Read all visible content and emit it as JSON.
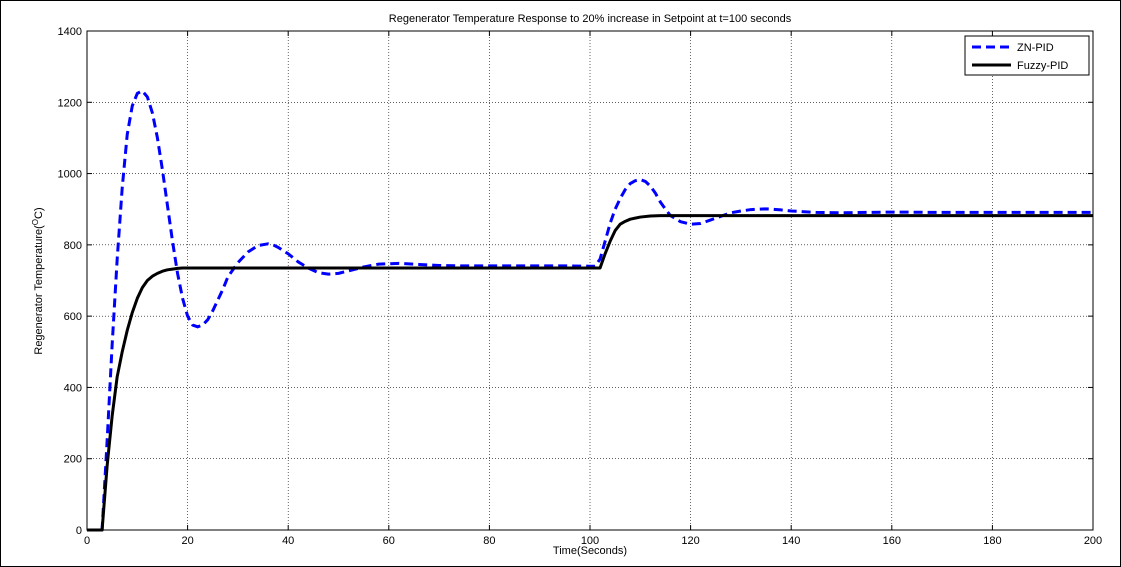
{
  "chart_data": {
    "type": "line",
    "title": "Regenerator Temperature Response to 20% increase in Setpoint at t=100 seconds",
    "xlabel": "Time(Seconds)",
    "ylabel_main": "Regenerator Temperature(",
    "ylabel_sup": "O",
    "ylabel_tail": "C)",
    "xlim": [
      0,
      200
    ],
    "ylim": [
      0,
      1400
    ],
    "xticks": [
      0,
      20,
      40,
      60,
      80,
      100,
      120,
      140,
      160,
      180,
      200
    ],
    "yticks": [
      0,
      200,
      400,
      600,
      800,
      1000,
      1200,
      1400
    ],
    "grid": true,
    "legend_position": "top-right",
    "series": [
      {
        "name": "ZN-PID",
        "color": "#0000ff",
        "style": "dashed",
        "x": [
          0,
          2,
          3,
          4,
          5,
          6,
          7,
          8,
          9,
          10,
          11,
          12,
          13,
          14,
          15,
          16,
          17,
          18,
          19,
          20,
          21,
          22,
          23,
          24,
          25,
          26,
          27,
          28,
          30,
          32,
          34,
          36,
          37,
          38,
          40,
          42,
          44,
          46,
          48,
          50,
          52,
          55,
          58,
          62,
          66,
          70,
          75,
          80,
          85,
          90,
          95,
          100,
          101,
          102,
          103,
          104,
          105,
          106,
          107,
          108,
          109,
          110,
          111,
          112,
          113,
          114,
          115,
          116,
          118,
          120,
          122,
          124,
          126,
          128,
          130,
          132,
          135,
          138,
          140,
          145,
          150,
          155,
          160,
          170,
          180,
          190,
          200
        ],
        "y": [
          0,
          0,
          0,
          250,
          520,
          760,
          960,
          1110,
          1190,
          1225,
          1232,
          1215,
          1170,
          1100,
          1010,
          910,
          810,
          720,
          650,
          600,
          575,
          570,
          575,
          590,
          615,
          645,
          675,
          710,
          750,
          780,
          798,
          803,
          800,
          793,
          775,
          752,
          735,
          722,
          718,
          720,
          727,
          738,
          746,
          748,
          745,
          742,
          741,
          741,
          741,
          741,
          741,
          740,
          740,
          760,
          810,
          860,
          900,
          930,
          955,
          972,
          980,
          983,
          978,
          965,
          945,
          920,
          900,
          882,
          865,
          858,
          860,
          870,
          880,
          890,
          895,
          899,
          901,
          898,
          895,
          891,
          890,
          891,
          892,
          891,
          891,
          891,
          891
        ]
      },
      {
        "name": "Fuzzy-PID",
        "color": "#000000",
        "style": "solid",
        "x": [
          0,
          2,
          3,
          4,
          5,
          6,
          7,
          8,
          9,
          10,
          11,
          12,
          13,
          14,
          15,
          16,
          17,
          18,
          19,
          20,
          22,
          25,
          30,
          40,
          50,
          60,
          70,
          80,
          90,
          100,
          101,
          102,
          103,
          104,
          105,
          106,
          107,
          108,
          110,
          112,
          114,
          116,
          120,
          130,
          140,
          150,
          160,
          170,
          180,
          190,
          200
        ],
        "y": [
          0,
          0,
          0,
          180,
          320,
          430,
          500,
          560,
          610,
          650,
          680,
          700,
          712,
          720,
          726,
          730,
          732,
          734,
          735,
          735,
          735,
          735,
          735,
          735,
          735,
          735,
          735,
          735,
          735,
          735,
          735,
          735,
          775,
          810,
          840,
          858,
          866,
          872,
          878,
          881,
          882,
          882,
          882,
          882,
          882,
          882,
          882,
          882,
          882,
          882,
          882
        ]
      }
    ]
  }
}
